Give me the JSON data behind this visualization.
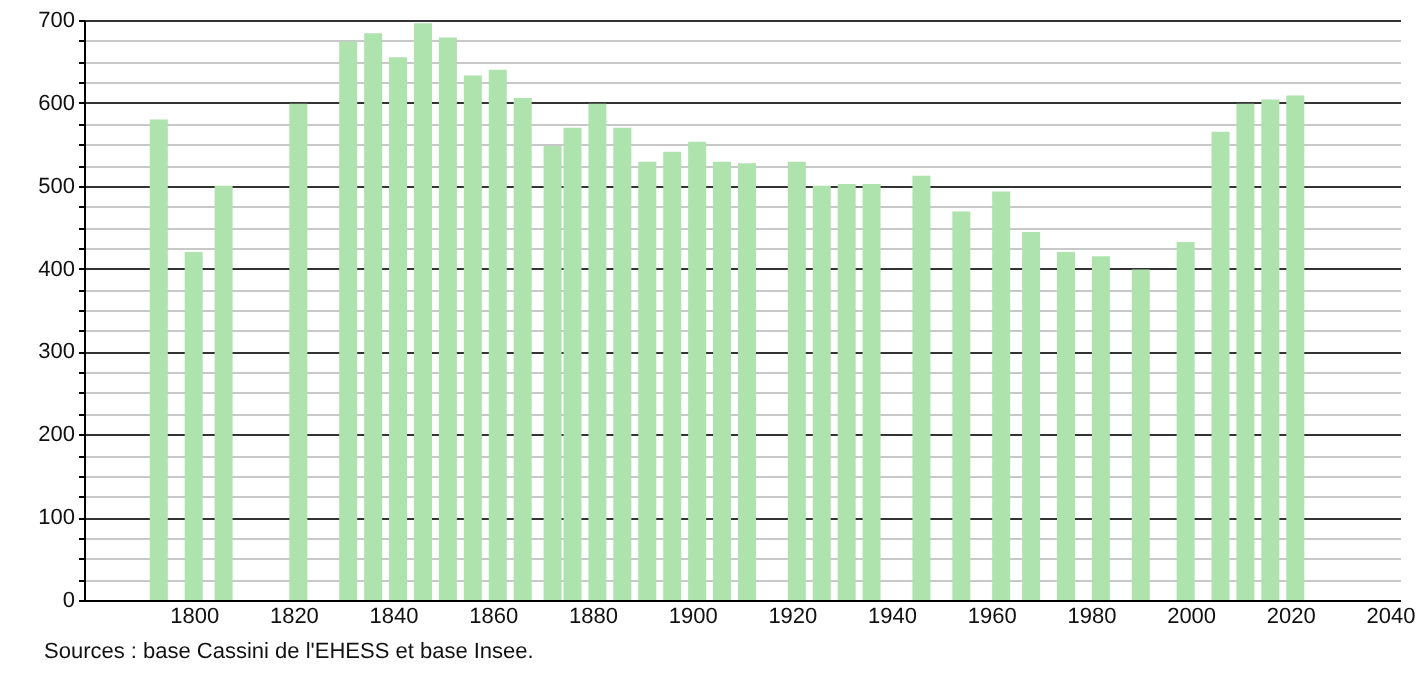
{
  "chart_data": {
    "type": "bar",
    "x": [
      1793,
      1800,
      1806,
      1821,
      1831,
      1836,
      1841,
      1846,
      1851,
      1856,
      1861,
      1866,
      1872,
      1876,
      1881,
      1886,
      1891,
      1896,
      1901,
      1906,
      1911,
      1921,
      1926,
      1931,
      1936,
      1946,
      1954,
      1962,
      1968,
      1975,
      1982,
      1990,
      1999,
      2006,
      2011,
      2016,
      2021
    ],
    "series": [
      {
        "color": "#aee3ae",
        "values": [
          580,
          420,
          500,
          599,
          674,
          684,
          655,
          696,
          679,
          633,
          640,
          606,
          548,
          570,
          599,
          570,
          529,
          541,
          553,
          529,
          527,
          529,
          500,
          502,
          502,
          512,
          469,
          493,
          444,
          420,
          415,
          399,
          432,
          565,
          599,
          604,
          609
        ]
      }
    ],
    "xlim": [
      1780,
      2040
    ],
    "xticks": [
      1800,
      1820,
      1840,
      1860,
      1880,
      1900,
      1920,
      1940,
      1960,
      1980,
      2000,
      2020,
      2040
    ],
    "ylim": [
      0,
      700
    ],
    "yticks": [
      0,
      {
        "value": 25,
        "label": null
      },
      {
        "value": 50,
        "label": null
      },
      {
        "value": 75,
        "label": null
      },
      100,
      {
        "value": 125,
        "label": null
      },
      {
        "value": 150,
        "label": null
      },
      {
        "value": 175,
        "label": null
      },
      200,
      {
        "value": 225,
        "label": null
      },
      {
        "value": 250,
        "label": null
      },
      {
        "value": 275,
        "label": null
      },
      300,
      {
        "value": 325,
        "label": null
      },
      {
        "value": 350,
        "label": null
      },
      {
        "value": 375,
        "label": null
      },
      400,
      {
        "value": 425,
        "label": null
      },
      {
        "value": 450,
        "label": null
      },
      {
        "value": 475,
        "label": null
      },
      500,
      {
        "value": 525,
        "label": null
      },
      {
        "value": 550,
        "label": null
      },
      {
        "value": 575,
        "label": null
      },
      600,
      {
        "value": 625,
        "label": null
      },
      {
        "value": 650,
        "label": null
      },
      {
        "value": 675,
        "label": null
      },
      700
    ],
    "grid": "y",
    "annotations": [
      "Sources : base Cassini de l'EHESS et base Insee."
    ]
  }
}
